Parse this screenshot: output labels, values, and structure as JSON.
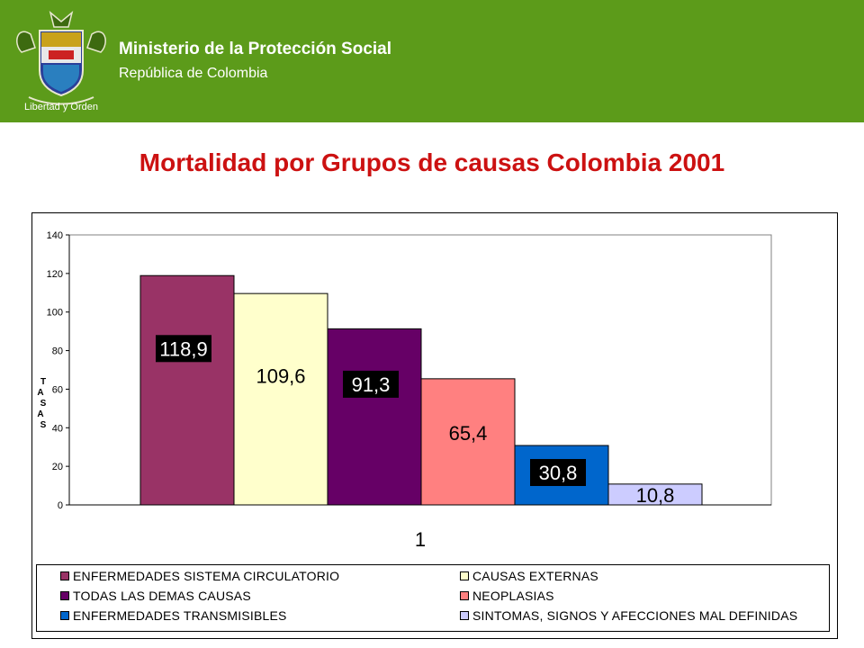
{
  "header": {
    "ministry": "Ministerio de la Protección Social",
    "country": "República de Colombia",
    "motto": "Libertad y Orden",
    "background_color": "#5c9b1a"
  },
  "slide_title": "Mortalidad por Grupos de causas Colombia 2001",
  "chart_data": {
    "type": "bar",
    "categories": [
      "1"
    ],
    "ylabel": "TASAS",
    "ylim": [
      0,
      140
    ],
    "yticks": [
      0,
      20,
      40,
      60,
      80,
      100,
      120,
      140
    ],
    "grid": false,
    "legend_position": "bottom",
    "series": [
      {
        "name": "ENFERMEDADES SISTEMA CIRCULATORIO",
        "values": [
          118.9
        ],
        "label": "118,9",
        "color": "#993366",
        "label_style": "dark"
      },
      {
        "name": "CAUSAS EXTERNAS",
        "values": [
          109.6
        ],
        "label": "109,6",
        "color": "#ffffcc",
        "label_style": "plain"
      },
      {
        "name": "TODAS LAS DEMAS CAUSAS",
        "values": [
          91.3
        ],
        "label": "91,3",
        "color": "#660066",
        "label_style": "dark"
      },
      {
        "name": "NEOPLASIAS",
        "values": [
          65.4
        ],
        "label": "65,4",
        "color": "#ff8080",
        "label_style": "plain"
      },
      {
        "name": "ENFERMEDADES TRANSMISIBLES",
        "values": [
          30.8
        ],
        "label": "30,8",
        "color": "#0066cc",
        "label_style": "dark"
      },
      {
        "name": "SINTOMAS, SIGNOS Y AFECCIONES MAL DEFINIDAS",
        "values": [
          10.8
        ],
        "label": "10,8",
        "color": "#ccccff",
        "label_style": "plain"
      }
    ]
  }
}
